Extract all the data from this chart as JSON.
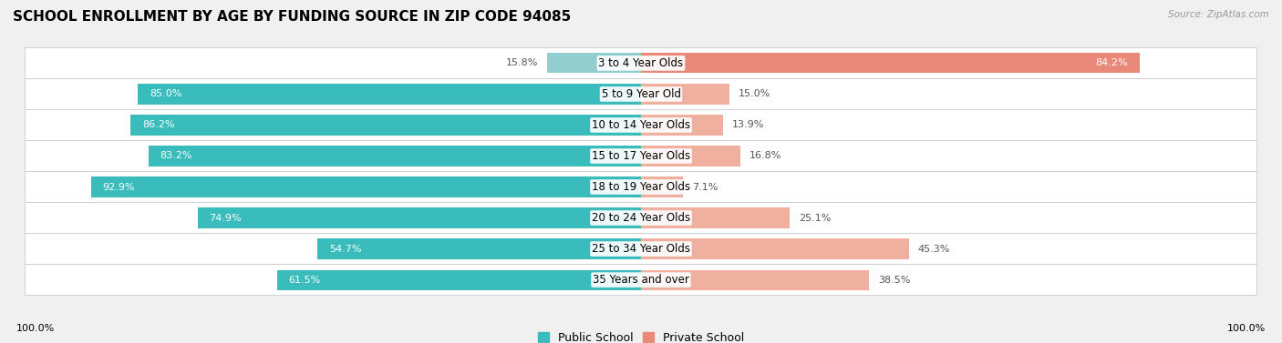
{
  "title": "SCHOOL ENROLLMENT BY AGE BY FUNDING SOURCE IN ZIP CODE 94085",
  "source": "Source: ZipAtlas.com",
  "categories": [
    "3 to 4 Year Olds",
    "5 to 9 Year Old",
    "10 to 14 Year Olds",
    "15 to 17 Year Olds",
    "18 to 19 Year Olds",
    "20 to 24 Year Olds",
    "25 to 34 Year Olds",
    "35 Years and over"
  ],
  "public_values": [
    15.8,
    85.0,
    86.2,
    83.2,
    92.9,
    74.9,
    54.7,
    61.5
  ],
  "private_values": [
    84.2,
    15.0,
    13.9,
    16.8,
    7.1,
    25.1,
    45.3,
    38.5
  ],
  "public_color": "#3bbcbc",
  "private_color": "#e8897a",
  "public_color_light": "#92cece",
  "private_color_light": "#f0b0a0",
  "background_color": "#f0f0f0",
  "row_bg_color": "#ffffff",
  "row_border_color": "#cccccc",
  "title_fontsize": 11,
  "label_fontsize": 8.5,
  "value_fontsize": 8,
  "legend_fontsize": 9,
  "axis_label_fontsize": 8
}
